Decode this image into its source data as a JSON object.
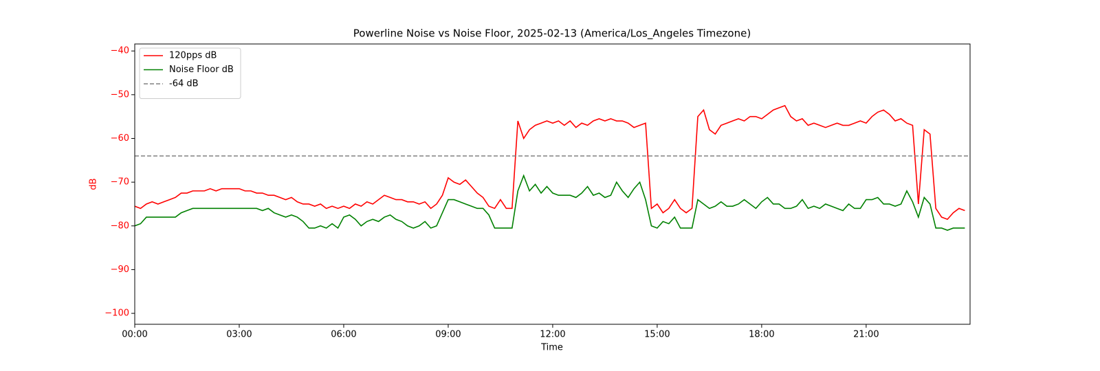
{
  "chart_data": {
    "type": "line",
    "title": "Powerline Noise vs Noise Floor, 2025-02-13 (America/Los_Angeles Timezone)",
    "xlabel": "Time",
    "ylabel": "dB",
    "yaxis_color": "#ff0000",
    "x": [
      "00:00",
      "00:10",
      "00:20",
      "00:30",
      "00:40",
      "00:50",
      "01:00",
      "01:10",
      "01:20",
      "01:30",
      "01:40",
      "01:50",
      "02:00",
      "02:10",
      "02:20",
      "02:30",
      "02:40",
      "02:50",
      "03:00",
      "03:10",
      "03:20",
      "03:30",
      "03:40",
      "03:50",
      "04:00",
      "04:10",
      "04:20",
      "04:30",
      "04:40",
      "04:50",
      "05:00",
      "05:10",
      "05:20",
      "05:30",
      "05:40",
      "05:50",
      "06:00",
      "06:10",
      "06:20",
      "06:30",
      "06:40",
      "06:50",
      "07:00",
      "07:10",
      "07:20",
      "07:30",
      "07:40",
      "07:50",
      "08:00",
      "08:10",
      "08:20",
      "08:30",
      "08:40",
      "08:50",
      "09:00",
      "09:10",
      "09:20",
      "09:30",
      "09:40",
      "09:50",
      "10:00",
      "10:10",
      "10:20",
      "10:30",
      "10:40",
      "10:50",
      "11:00",
      "11:10",
      "11:20",
      "11:30",
      "11:40",
      "11:50",
      "12:00",
      "12:10",
      "12:20",
      "12:30",
      "12:40",
      "12:50",
      "13:00",
      "13:10",
      "13:20",
      "13:30",
      "13:40",
      "13:50",
      "14:00",
      "14:10",
      "14:20",
      "14:30",
      "14:40",
      "14:50",
      "15:00",
      "15:10",
      "15:20",
      "15:30",
      "15:40",
      "15:50",
      "16:00",
      "16:10",
      "16:20",
      "16:30",
      "16:40",
      "16:50",
      "17:00",
      "17:10",
      "17:20",
      "17:30",
      "17:40",
      "17:50",
      "18:00",
      "18:10",
      "18:20",
      "18:30",
      "18:40",
      "18:50",
      "19:00",
      "19:10",
      "19:20",
      "19:30",
      "19:40",
      "19:50",
      "20:00",
      "20:10",
      "20:20",
      "20:30",
      "20:40",
      "20:50",
      "21:00",
      "21:10",
      "21:20",
      "21:30",
      "21:40",
      "21:50",
      "22:00",
      "22:10",
      "22:20",
      "22:30",
      "22:40",
      "22:50",
      "23:00",
      "23:10",
      "23:20",
      "23:30",
      "23:40",
      "23:50"
    ],
    "series": [
      {
        "name": "120pps dB",
        "color": "#ff0000",
        "values": [
          -75.5,
          -76,
          -75,
          -74.5,
          -75,
          -74.5,
          -74,
          -73.5,
          -72.5,
          -72.5,
          -72,
          -72,
          -72,
          -71.5,
          -72,
          -71.5,
          -71.5,
          -71.5,
          -71.5,
          -72,
          -72,
          -72.5,
          -72.5,
          -73,
          -73,
          -73.5,
          -74,
          -73.5,
          -74.5,
          -75,
          -75,
          -75.5,
          -75,
          -76,
          -75.5,
          -76,
          -75.5,
          -76,
          -75,
          -75.5,
          -74.5,
          -75,
          -74,
          -73,
          -73.5,
          -74,
          -74,
          -74.5,
          -74.5,
          -75,
          -74.5,
          -76,
          -75,
          -73,
          -69,
          -70,
          -70.5,
          -69.5,
          -71,
          -72.5,
          -73.5,
          -75.5,
          -76,
          -74,
          -76,
          -76,
          -56,
          -60,
          -58,
          -57,
          -56.5,
          -56,
          -56.5,
          -56,
          -57,
          -56,
          -57.5,
          -56.5,
          -57,
          -56,
          -55.5,
          -56,
          -55.5,
          -56,
          -56,
          -56.5,
          -57.5,
          -57,
          -56.5,
          -76,
          -75,
          -77,
          -76,
          -74,
          -76,
          -77,
          -76,
          -55,
          -53.5,
          -58,
          -59,
          -57,
          -56.5,
          -56,
          -55.5,
          -56,
          -55,
          -55,
          -55.5,
          -54.5,
          -53.5,
          -53,
          -52.5,
          -55,
          -56,
          -55.5,
          -57,
          -56.5,
          -57,
          -57.5,
          -57,
          -56.5,
          -57,
          -57,
          -56.5,
          -56,
          -56.5,
          -55,
          -54,
          -53.5,
          -54.5,
          -56,
          -55.5,
          -56.5,
          -57,
          -75,
          -58,
          -59,
          -76,
          -78,
          -78.5,
          -77,
          -76,
          -76.5
        ]
      },
      {
        "name": "Noise Floor dB",
        "color": "#008000",
        "values": [
          -80,
          -79.5,
          -78,
          -78,
          -78,
          -78,
          -78,
          -78,
          -77,
          -76.5,
          -76,
          -76,
          -76,
          -76,
          -76,
          -76,
          -76,
          -76,
          -76,
          -76,
          -76,
          -76,
          -76.5,
          -76,
          -77,
          -77.5,
          -78,
          -77.5,
          -78,
          -79,
          -80.5,
          -80.5,
          -80,
          -80.5,
          -79.5,
          -80.5,
          -78,
          -77.5,
          -78.5,
          -80,
          -79,
          -78.5,
          -79,
          -78,
          -77.5,
          -78.5,
          -79,
          -80,
          -80.5,
          -80,
          -79,
          -80.5,
          -80,
          -77,
          -74,
          -74,
          -74.5,
          -75,
          -75.5,
          -76,
          -76,
          -77.5,
          -80.5,
          -80.5,
          -80.5,
          -80.5,
          -72,
          -68.5,
          -72,
          -70.5,
          -72.5,
          -71,
          -72.5,
          -73,
          -73,
          -73,
          -73.5,
          -72.5,
          -71,
          -73,
          -72.5,
          -73.5,
          -73,
          -70,
          -72,
          -73.5,
          -71.5,
          -70,
          -74,
          -80,
          -80.5,
          -79,
          -79.5,
          -78,
          -80.5,
          -80.5,
          -80.5,
          -74,
          -75,
          -76,
          -75.5,
          -74.5,
          -75.5,
          -75.5,
          -75,
          -74,
          -75,
          -76,
          -74.5,
          -73.5,
          -75,
          -75,
          -76,
          -76,
          -75.5,
          -74,
          -76,
          -75.5,
          -76,
          -75,
          -75.5,
          -76,
          -76.5,
          -75,
          -76,
          -76,
          -74,
          -74,
          -73.5,
          -75,
          -75,
          -75.5,
          -75,
          -72,
          -74.5,
          -78,
          -73.5,
          -75,
          -80.5,
          -80.5,
          -81,
          -80.5,
          -80.5,
          -80.5
        ]
      }
    ],
    "hlines": [
      {
        "name": "-64 dB",
        "value": -64,
        "color": "#808080",
        "style": "dashed"
      }
    ],
    "xlim": [
      "00:00",
      "23:59"
    ],
    "xticks": [
      "00:00",
      "03:00",
      "06:00",
      "09:00",
      "12:00",
      "15:00",
      "18:00",
      "21:00"
    ],
    "ylim": [
      -102.5,
      -38.4
    ],
    "yticks": [
      {
        "value": -100,
        "label": "−100"
      },
      {
        "value": -90,
        "label": "−90"
      },
      {
        "value": -80,
        "label": "−80"
      },
      {
        "value": -70,
        "label": "−70"
      },
      {
        "value": -60,
        "label": "−60"
      },
      {
        "value": -50,
        "label": "−50"
      },
      {
        "value": -40,
        "label": "−40"
      }
    ],
    "legend": "upper left"
  }
}
